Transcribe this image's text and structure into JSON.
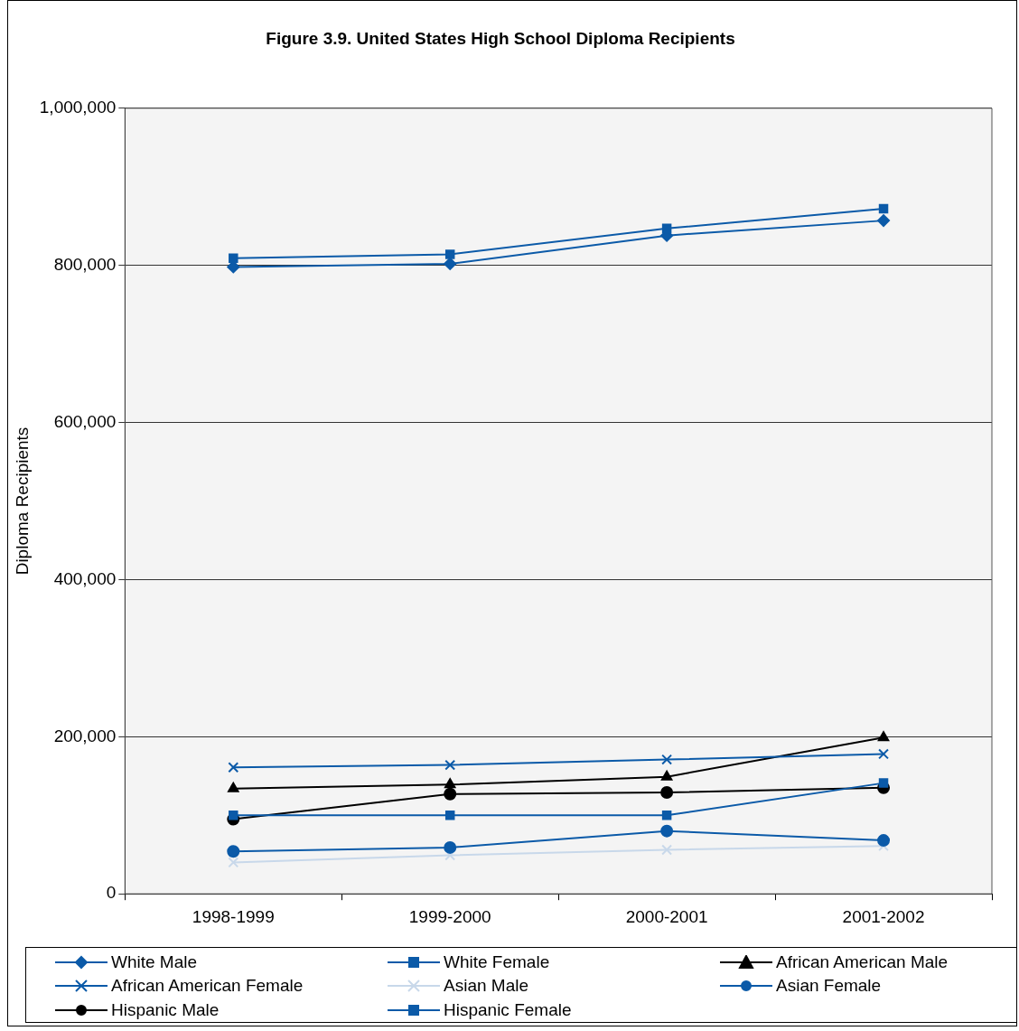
{
  "chart_data": {
    "type": "line",
    "title": "Figure 3.9. United States High School Diploma Recipients",
    "ylabel": "Diploma Recipients",
    "categories": [
      "1998-1999",
      "1999-2000",
      "2000-2001",
      "2001-2002"
    ],
    "ylim": [
      0,
      1000000
    ],
    "yticks": [
      0,
      {
        "value": 200000,
        "label": "200,000"
      },
      {
        "value": 400000,
        "label": "400,000"
      },
      {
        "value": 600000,
        "label": "600,000"
      },
      {
        "value": 800000,
        "label": "800,000"
      },
      {
        "value": 1000000,
        "label": "1,000,000"
      }
    ],
    "grid": "y",
    "legend": "bottom",
    "series": [
      {
        "name": "White Male",
        "color": "#0b5aa8",
        "marker": "diamond",
        "values": [
          798000,
          802000,
          838000,
          857000
        ]
      },
      {
        "name": "White Female",
        "color": "#0b5aa8",
        "marker": "square",
        "values": [
          809000,
          814000,
          847000,
          872000
        ]
      },
      {
        "name": "African American Male",
        "color": "#000000",
        "marker": "triangle",
        "values": [
          134000,
          139000,
          149000,
          199000
        ]
      },
      {
        "name": "African American Female",
        "color": "#0b5aa8",
        "marker": "cross",
        "values": [
          161000,
          164000,
          171000,
          178000
        ]
      },
      {
        "name": "Asian Male",
        "color": "#c8d8ea",
        "marker": "cross",
        "values": [
          40000,
          49000,
          56000,
          61000
        ]
      },
      {
        "name": "Asian Female",
        "color": "#0b5aa8",
        "marker": "circle",
        "values": [
          54000,
          59000,
          80000,
          68000
        ]
      },
      {
        "name": "Hispanic Male",
        "color": "#000000",
        "marker": "circle",
        "values": [
          95000,
          127000,
          129000,
          135000
        ]
      },
      {
        "name": "Hispanic Female",
        "color": "#0b5aa8",
        "marker": "square",
        "values": [
          100000,
          100000,
          100000,
          141000
        ]
      }
    ]
  }
}
